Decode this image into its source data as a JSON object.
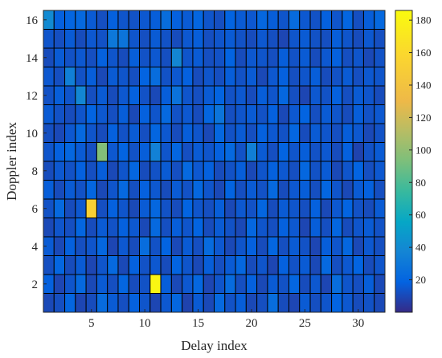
{
  "chart_data": {
    "type": "heatmap",
    "xlabel": "Delay index",
    "ylabel": "Doppler index",
    "x_range": [
      1,
      32
    ],
    "y_range": [
      1,
      16
    ],
    "x_ticks": [
      5,
      10,
      15,
      20,
      25,
      30
    ],
    "y_ticks": [
      2,
      4,
      6,
      8,
      10,
      12,
      14,
      16
    ],
    "colorbar": {
      "colormap": "parula",
      "range": [
        0,
        186
      ],
      "ticks": [
        20,
        40,
        60,
        80,
        100,
        120,
        140,
        160,
        180
      ]
    },
    "grid": false,
    "cell_edge_color": "#000000",
    "values": [
      [
        10,
        12,
        20,
        9,
        11,
        23,
        16,
        12,
        18,
        14,
        9,
        15,
        21,
        8,
        16,
        10,
        22,
        13,
        17,
        10,
        12,
        24,
        11,
        9,
        16,
        12,
        14,
        19,
        15,
        11,
        13,
        10
      ],
      [
        18,
        9,
        14,
        22,
        10,
        16,
        12,
        20,
        11,
        13,
        182,
        17,
        10,
        15,
        21,
        9,
        14,
        23,
        12,
        18,
        10,
        16,
        13,
        20,
        11,
        15,
        9,
        24,
        14,
        12,
        17,
        10
      ],
      [
        12,
        20,
        11,
        16,
        9,
        14,
        22,
        10,
        18,
        13,
        15,
        11,
        19,
        14,
        10,
        17,
        12,
        16,
        21,
        11,
        14,
        9,
        18,
        13,
        16,
        10,
        22,
        12,
        15,
        19,
        11,
        14
      ],
      [
        16,
        10,
        18,
        12,
        14,
        21,
        9,
        15,
        11,
        24,
        13,
        19,
        10,
        16,
        12,
        23,
        15,
        10,
        14,
        18,
        11,
        20,
        12,
        16,
        13,
        9,
        17,
        14,
        21,
        10,
        15,
        12
      ],
      [
        10,
        14,
        12,
        20,
        11,
        16,
        13,
        18,
        15,
        10,
        22,
        12,
        17,
        14,
        19,
        11,
        16,
        13,
        10,
        21,
        14,
        12,
        18,
        15,
        9,
        17,
        12,
        20,
        11,
        14,
        16,
        13
      ],
      [
        13,
        22,
        11,
        15,
        152,
        12,
        18,
        14,
        10,
        16,
        21,
        13,
        11,
        19,
        14,
        12,
        17,
        10,
        15,
        13,
        20,
        11,
        16,
        14,
        12,
        18,
        10,
        15,
        19,
        13,
        11,
        16
      ],
      [
        17,
        11,
        16,
        13,
        20,
        10,
        14,
        22,
        12,
        18,
        15,
        11,
        16,
        13,
        21,
        14,
        10,
        19,
        12,
        16,
        13,
        22,
        11,
        15,
        17,
        12,
        20,
        14,
        10,
        16,
        18,
        12
      ],
      [
        11,
        15,
        13,
        18,
        12,
        17,
        10,
        14,
        20,
        11,
        13,
        16,
        12,
        22,
        15,
        18,
        11,
        13,
        17,
        10,
        14,
        18,
        15,
        12,
        21,
        13,
        16,
        10,
        14,
        19,
        12,
        15
      ],
      [
        14,
        18,
        21,
        16,
        12,
        95,
        15,
        19,
        13,
        17,
        35,
        14,
        20,
        12,
        16,
        14,
        18,
        22,
        13,
        34,
        16,
        12,
        19,
        14,
        17,
        13,
        15,
        11,
        18,
        8,
        13,
        16
      ],
      [
        12,
        10,
        15,
        22,
        14,
        11,
        18,
        13,
        16,
        12,
        20,
        15,
        11,
        17,
        14,
        10,
        21,
        13,
        16,
        12,
        18,
        15,
        13,
        20,
        11,
        16,
        14,
        12,
        17,
        15,
        10,
        13
      ],
      [
        16,
        13,
        11,
        14,
        19,
        15,
        12,
        17,
        10,
        18,
        14,
        22,
        13,
        15,
        11,
        20,
        28,
        12,
        14,
        16,
        13,
        18,
        10,
        15,
        19,
        12,
        16,
        14,
        11,
        17,
        13,
        15
      ],
      [
        13,
        17,
        14,
        38,
        12,
        16,
        11,
        15,
        18,
        13,
        10,
        17,
        27,
        14,
        12,
        16,
        19,
        13,
        15,
        11,
        17,
        14,
        21,
        12,
        9,
        15,
        13,
        18,
        12,
        16,
        14,
        11
      ],
      [
        15,
        12,
        34,
        13,
        17,
        10,
        16,
        14,
        12,
        19,
        24,
        13,
        15,
        18,
        11,
        14,
        12,
        17,
        13,
        16,
        10,
        15,
        18,
        12,
        14,
        17,
        11,
        13,
        16,
        12,
        15,
        14
      ],
      [
        11,
        16,
        13,
        15,
        12,
        18,
        14,
        11,
        17,
        13,
        15,
        12,
        38,
        14,
        16,
        12,
        13,
        19,
        11,
        15,
        14,
        12,
        17,
        13,
        16,
        11,
        15,
        18,
        12,
        14,
        10,
        13
      ],
      [
        14,
        12,
        16,
        11,
        15,
        13,
        30,
        28,
        14,
        12,
        16,
        13,
        11,
        15,
        17,
        12,
        14,
        16,
        13,
        11,
        15,
        12,
        9,
        14,
        16,
        13,
        12,
        17,
        14,
        11,
        15,
        12
      ],
      [
        40,
        18,
        20,
        22,
        16,
        12,
        18,
        14,
        13,
        15,
        17,
        24,
        18,
        16,
        20,
        14,
        12,
        19,
        16,
        15,
        21,
        17,
        14,
        23,
        15,
        13,
        18,
        14,
        20,
        12,
        17,
        22
      ]
    ]
  }
}
